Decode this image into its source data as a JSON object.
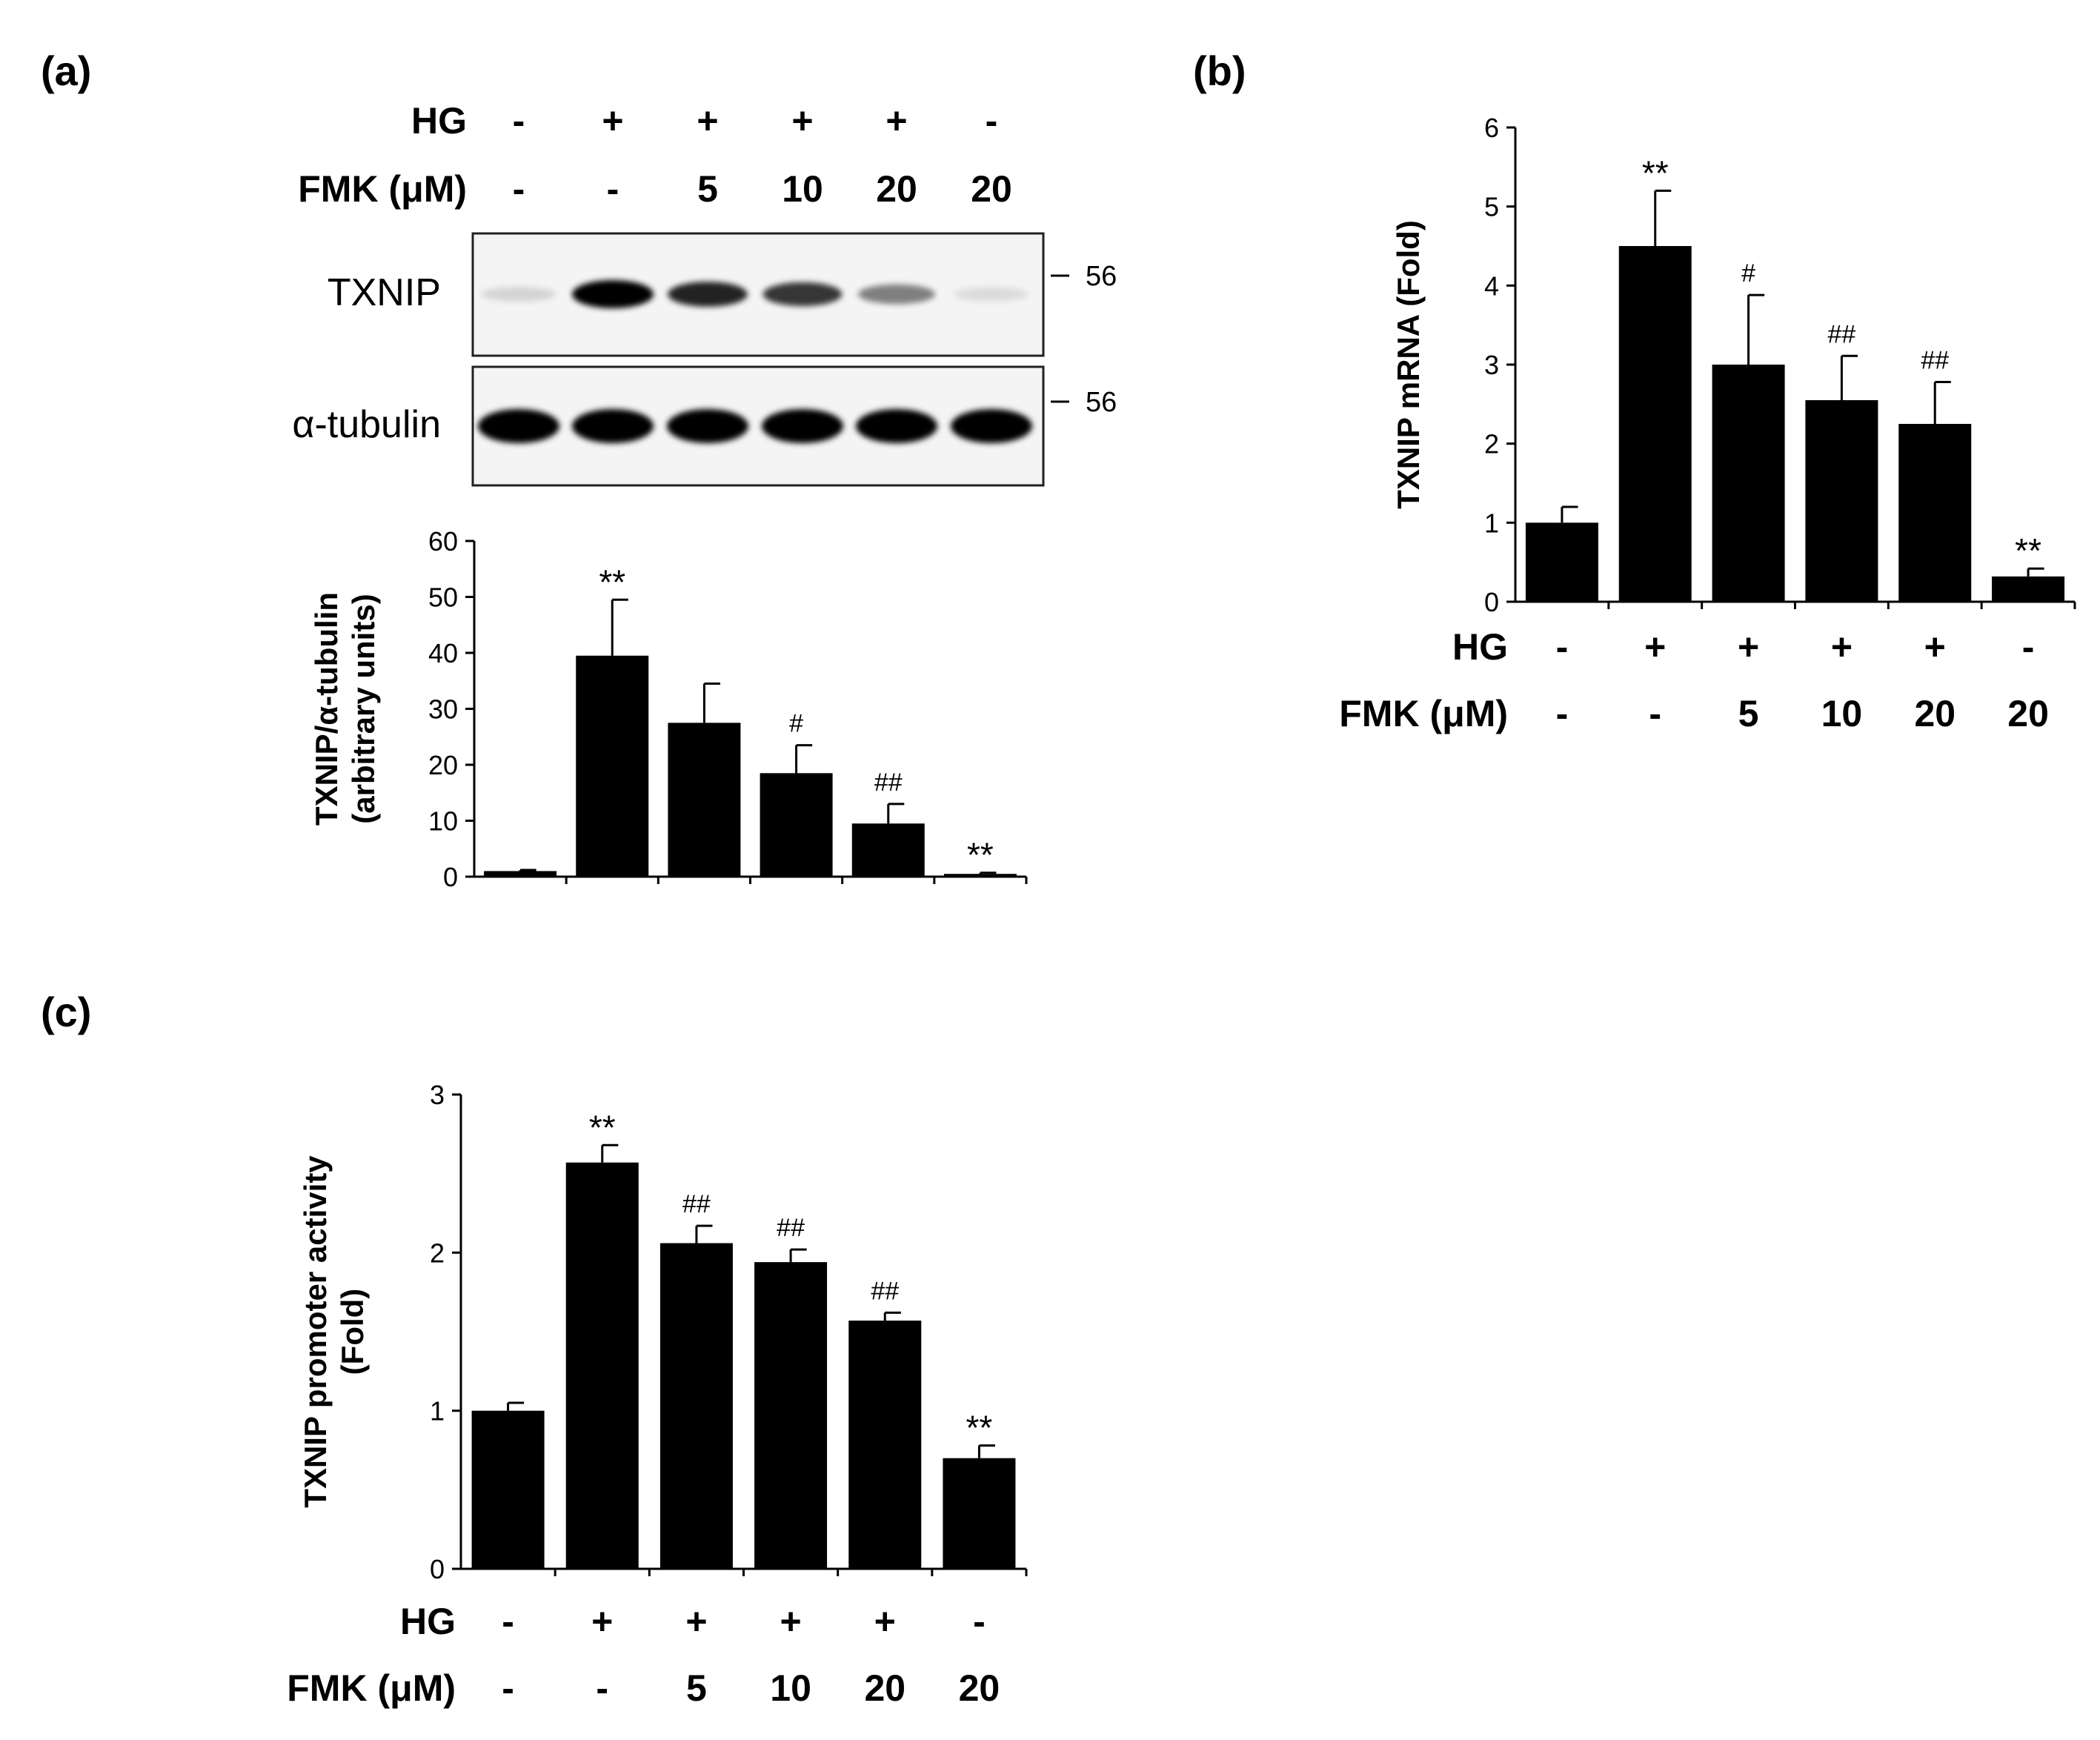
{
  "panels": {
    "a": "(a)",
    "b": "(b)",
    "c": "(c)"
  },
  "conditions": {
    "hg_label": "HG",
    "fmk_label": "FMK (μM)",
    "hg": [
      "-",
      "+",
      "+",
      "+",
      "+",
      "-"
    ],
    "fmk": [
      "-",
      "-",
      "5",
      "10",
      "20",
      "20"
    ]
  },
  "blot": {
    "rows": [
      {
        "label": "TXNIP",
        "marker": "56",
        "intensity": [
          0.05,
          1.0,
          0.78,
          0.7,
          0.4,
          0.02
        ]
      },
      {
        "label": "α-tubulin",
        "marker": "56",
        "intensity": [
          1.0,
          1.0,
          1.0,
          1.0,
          1.0,
          1.0
        ]
      }
    ]
  },
  "chart_data": [
    {
      "id": "a",
      "type": "bar",
      "ylabel_lines": [
        "TXNIP/α-tubulin",
        "(arbitrary units)"
      ],
      "ylim": [
        0,
        60
      ],
      "yticks": [
        0,
        10,
        20,
        30,
        40,
        50,
        60
      ],
      "values": [
        1,
        39.5,
        27.5,
        18.5,
        9.5,
        0.5
      ],
      "errors": [
        0.2,
        10,
        7,
        5,
        3.5,
        0.2
      ],
      "annotations": [
        "",
        "**",
        "",
        "#",
        "##",
        "**"
      ]
    },
    {
      "id": "b",
      "type": "bar",
      "ylabel_lines": [
        "TXNIP mRNA (Fold)"
      ],
      "ylim": [
        0,
        6
      ],
      "yticks": [
        0,
        1,
        2,
        3,
        4,
        5,
        6
      ],
      "values": [
        1.0,
        4.5,
        3.0,
        2.55,
        2.25,
        0.32
      ],
      "errors": [
        0.2,
        0.7,
        0.88,
        0.56,
        0.53,
        0.1
      ],
      "annotations": [
        "",
        "**",
        "#",
        "##",
        "##",
        "**"
      ]
    },
    {
      "id": "c",
      "type": "bar",
      "ylabel_lines": [
        "TXNIP promoter activity",
        "(Fold)"
      ],
      "ylim": [
        0,
        3
      ],
      "yticks": [
        0,
        1,
        2,
        3
      ],
      "values": [
        1.0,
        2.57,
        2.06,
        1.94,
        1.57,
        0.7
      ],
      "errors": [
        0.05,
        0.11,
        0.11,
        0.08,
        0.05,
        0.08
      ],
      "annotations": [
        "",
        "**",
        "##",
        "##",
        "##",
        "**"
      ]
    }
  ]
}
